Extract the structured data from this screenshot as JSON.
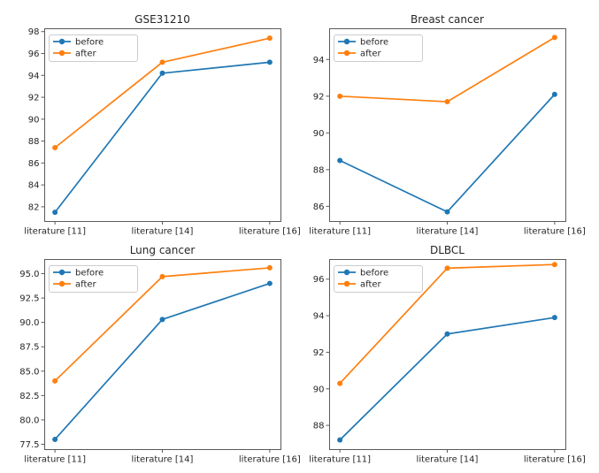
{
  "figure": {
    "background": "#ffffff",
    "axis_color": "#5a5a5a",
    "text_color": "#262626",
    "legend_border_color": "#cccccc",
    "legend_background": "#ffffff"
  },
  "chart_data": [
    {
      "type": "line",
      "title": "GSE31210",
      "categories": [
        "literature [11]",
        "literature [14]",
        "literature [16]"
      ],
      "series": [
        {
          "name": "before",
          "color": "#1f77b4",
          "values": [
            81.5,
            94.2,
            95.2
          ]
        },
        {
          "name": "after",
          "color": "#ff7f0e",
          "values": [
            87.4,
            95.2,
            97.4
          ]
        }
      ],
      "ylim": [
        80.7,
        98.3
      ],
      "ytick_values": [
        82,
        84,
        86,
        88,
        90,
        92,
        94,
        96,
        98
      ],
      "ytick_labels": [
        "82",
        "84",
        "86",
        "88",
        "90",
        "92",
        "94",
        "96",
        "98"
      ],
      "xlim": [
        -0.1,
        2.1
      ],
      "grid": false,
      "legend_position": "upper left",
      "marker": "circle"
    },
    {
      "type": "line",
      "title": "Breast cancer",
      "categories": [
        "literature [11]",
        "literature [14]",
        "literature [16]"
      ],
      "series": [
        {
          "name": "before",
          "color": "#1f77b4",
          "values": [
            88.5,
            85.7,
            92.1
          ]
        },
        {
          "name": "after",
          "color": "#ff7f0e",
          "values": [
            92.0,
            91.7,
            95.2
          ]
        }
      ],
      "ylim": [
        85.2,
        95.7
      ],
      "ytick_values": [
        86,
        88,
        90,
        92,
        94
      ],
      "ytick_labels": [
        "86",
        "88",
        "90",
        "92",
        "94"
      ],
      "xlim": [
        -0.1,
        2.1
      ],
      "grid": false,
      "legend_position": "upper left",
      "marker": "circle"
    },
    {
      "type": "line",
      "title": "Lung cancer",
      "categories": [
        "literature [11]",
        "literature [14]",
        "literature [16]"
      ],
      "series": [
        {
          "name": "before",
          "color": "#1f77b4",
          "values": [
            78.0,
            90.3,
            94.0
          ]
        },
        {
          "name": "after",
          "color": "#ff7f0e",
          "values": [
            84.0,
            94.7,
            95.6
          ]
        }
      ],
      "ylim": [
        77.0,
        96.5
      ],
      "ytick_values": [
        77.5,
        80.0,
        82.5,
        85.0,
        87.5,
        90.0,
        92.5,
        95.0
      ],
      "ytick_labels": [
        "77.5",
        "80.0",
        "82.5",
        "85.0",
        "87.5",
        "90.0",
        "92.5",
        "95.0"
      ],
      "xlim": [
        -0.1,
        2.1
      ],
      "grid": false,
      "legend_position": "upper left",
      "marker": "circle"
    },
    {
      "type": "line",
      "title": "DLBCL",
      "categories": [
        "literature [11]",
        "literature [14]",
        "literature [16]"
      ],
      "series": [
        {
          "name": "before",
          "color": "#1f77b4",
          "values": [
            87.2,
            93.0,
            93.9
          ]
        },
        {
          "name": "after",
          "color": "#ff7f0e",
          "values": [
            90.3,
            96.6,
            96.8
          ]
        }
      ],
      "ylim": [
        86.7,
        97.1
      ],
      "ytick_values": [
        88,
        90,
        92,
        94,
        96
      ],
      "ytick_labels": [
        "88",
        "90",
        "92",
        "94",
        "96"
      ],
      "xlim": [
        -0.1,
        2.1
      ],
      "grid": false,
      "legend_position": "upper left",
      "marker": "circle"
    }
  ]
}
